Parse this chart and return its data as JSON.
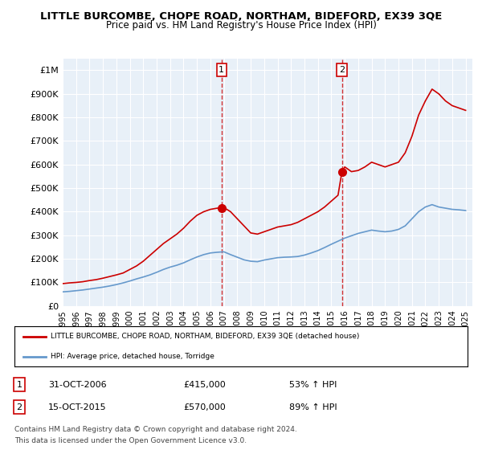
{
  "title": "LITTLE BURCOMBE, CHOPE ROAD, NORTHAM, BIDEFORD, EX39 3QE",
  "subtitle": "Price paid vs. HM Land Registry's House Price Index (HPI)",
  "ylabel_ticks": [
    "£0",
    "£100K",
    "£200K",
    "£300K",
    "£400K",
    "£500K",
    "£600K",
    "£700K",
    "£800K",
    "£900K",
    "£1M"
  ],
  "ytick_values": [
    0,
    100000,
    200000,
    300000,
    400000,
    500000,
    600000,
    700000,
    800000,
    900000,
    1000000
  ],
  "ylim": [
    0,
    1050000
  ],
  "xlim_start": 1995.0,
  "xlim_end": 2025.5,
  "sale1_x": 2006.83,
  "sale1_y": 415000,
  "sale2_x": 2015.79,
  "sale2_y": 570000,
  "sale1_label": "1",
  "sale2_label": "2",
  "sale1_date": "31-OCT-2006",
  "sale1_price": "£415,000",
  "sale1_hpi": "53% ↑ HPI",
  "sale2_date": "15-OCT-2015",
  "sale2_price": "£570,000",
  "sale2_hpi": "89% ↑ HPI",
  "legend_red": "LITTLE BURCOMBE, CHOPE ROAD, NORTHAM, BIDEFORD, EX39 3QE (detached house)",
  "legend_blue": "HPI: Average price, detached house, Torridge",
  "footer1": "Contains HM Land Registry data © Crown copyright and database right 2024.",
  "footer2": "This data is licensed under the Open Government Licence v3.0.",
  "red_color": "#cc0000",
  "blue_color": "#6699cc",
  "dashed_color": "#cc0000",
  "bg_color": "#ffffff",
  "plot_bg": "#e8f0f8",
  "grid_color": "#ffffff",
  "x_years": [
    1995,
    1996,
    1997,
    1998,
    1999,
    2000,
    2001,
    2002,
    2003,
    2004,
    2005,
    2006,
    2007,
    2008,
    2009,
    2010,
    2011,
    2012,
    2013,
    2014,
    2015,
    2016,
    2017,
    2018,
    2019,
    2020,
    2021,
    2022,
    2023,
    2024,
    2025
  ],
  "red_x": [
    1995.0,
    1995.5,
    1996.0,
    1996.5,
    1997.0,
    1997.5,
    1998.0,
    1998.5,
    1999.0,
    1999.5,
    2000.0,
    2000.5,
    2001.0,
    2001.5,
    2002.0,
    2002.5,
    2003.0,
    2003.5,
    2004.0,
    2004.5,
    2005.0,
    2005.5,
    2006.0,
    2006.5,
    2006.83,
    2007.0,
    2007.5,
    2008.0,
    2008.5,
    2009.0,
    2009.5,
    2010.0,
    2010.5,
    2011.0,
    2011.5,
    2012.0,
    2012.5,
    2013.0,
    2013.5,
    2014.0,
    2014.5,
    2015.0,
    2015.5,
    2015.79,
    2016.0,
    2016.5,
    2017.0,
    2017.5,
    2018.0,
    2018.5,
    2019.0,
    2019.5,
    2020.0,
    2020.5,
    2021.0,
    2021.5,
    2022.0,
    2022.5,
    2023.0,
    2023.5,
    2024.0,
    2024.5,
    2025.0
  ],
  "red_y": [
    95000,
    98000,
    100000,
    103000,
    108000,
    112000,
    118000,
    125000,
    132000,
    140000,
    155000,
    170000,
    190000,
    215000,
    240000,
    265000,
    285000,
    305000,
    330000,
    360000,
    385000,
    400000,
    410000,
    415000,
    415000,
    418000,
    400000,
    370000,
    340000,
    310000,
    305000,
    315000,
    325000,
    335000,
    340000,
    345000,
    355000,
    370000,
    385000,
    400000,
    420000,
    445000,
    470000,
    570000,
    590000,
    570000,
    575000,
    590000,
    610000,
    600000,
    590000,
    600000,
    610000,
    650000,
    720000,
    810000,
    870000,
    920000,
    900000,
    870000,
    850000,
    840000,
    830000
  ],
  "blue_x": [
    1995.0,
    1995.5,
    1996.0,
    1996.5,
    1997.0,
    1997.5,
    1998.0,
    1998.5,
    1999.0,
    1999.5,
    2000.0,
    2000.5,
    2001.0,
    2001.5,
    2002.0,
    2002.5,
    2003.0,
    2003.5,
    2004.0,
    2004.5,
    2005.0,
    2005.5,
    2006.0,
    2006.5,
    2007.0,
    2007.5,
    2008.0,
    2008.5,
    2009.0,
    2009.5,
    2010.0,
    2010.5,
    2011.0,
    2011.5,
    2012.0,
    2012.5,
    2013.0,
    2013.5,
    2014.0,
    2014.5,
    2015.0,
    2015.5,
    2016.0,
    2016.5,
    2017.0,
    2017.5,
    2018.0,
    2018.5,
    2019.0,
    2019.5,
    2020.0,
    2020.5,
    2021.0,
    2021.5,
    2022.0,
    2022.5,
    2023.0,
    2023.5,
    2024.0,
    2024.5,
    2025.0
  ],
  "blue_y": [
    60000,
    62000,
    65000,
    68000,
    72000,
    76000,
    80000,
    85000,
    91000,
    98000,
    106000,
    115000,
    123000,
    132000,
    143000,
    155000,
    165000,
    173000,
    183000,
    196000,
    208000,
    218000,
    225000,
    228000,
    230000,
    218000,
    207000,
    196000,
    190000,
    188000,
    195000,
    200000,
    205000,
    207000,
    208000,
    210000,
    216000,
    225000,
    235000,
    248000,
    262000,
    275000,
    288000,
    298000,
    308000,
    315000,
    322000,
    318000,
    315000,
    318000,
    325000,
    340000,
    370000,
    400000,
    420000,
    430000,
    420000,
    415000,
    410000,
    408000,
    405000
  ]
}
